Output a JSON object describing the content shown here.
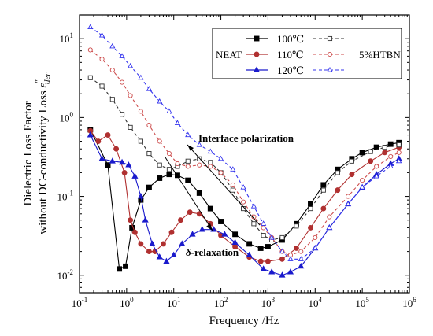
{
  "chart_data": {
    "type": "line",
    "xlabel": "Frequency /Hz",
    "ylabel_line1": "Dielectric Loss Factor",
    "ylabel_line2_prefix": "without DC-conductivity Loss ",
    "ylabel_symbol": "ε",
    "ylabel_superscript": "″",
    "ylabel_subscript": "der",
    "x_scale": "log",
    "y_scale": "log",
    "xlim": [
      0.1,
      1000000
    ],
    "ylim": [
      0.006,
      20
    ],
    "x_ticks": [
      {
        "value": 0.1,
        "base": "10",
        "exp": "-1"
      },
      {
        "value": 1,
        "base": "10",
        "exp": "0"
      },
      {
        "value": 10,
        "base": "10",
        "exp": "1"
      },
      {
        "value": 100,
        "base": "10",
        "exp": "2"
      },
      {
        "value": 1000,
        "base": "10",
        "exp": "3"
      },
      {
        "value": 10000,
        "base": "10",
        "exp": "4"
      },
      {
        "value": 100000,
        "base": "10",
        "exp": "5"
      },
      {
        "value": 1000000,
        "base": "10",
        "exp": "6"
      }
    ],
    "y_ticks": [
      {
        "value": 0.01,
        "base": "10",
        "exp": "-2"
      },
      {
        "value": 0.1,
        "base": "10",
        "exp": "-1"
      },
      {
        "value": 1,
        "base": "10",
        "exp": "0"
      },
      {
        "value": 10,
        "base": "10",
        "exp": "1"
      }
    ],
    "legend": {
      "placement": "top-right",
      "row_labels": [
        "100℃",
        "110℃",
        "120℃"
      ],
      "left_label": "NEAT",
      "right_label": "5%HTBN"
    },
    "annotations": {
      "interface": "Interface polarization",
      "delta_symbol": "δ",
      "delta_text": "-relaxation"
    },
    "series": [
      {
        "group": "NEAT",
        "temperature": "100℃",
        "color": "#000000",
        "marker": "square",
        "filled": true,
        "dashed": false,
        "points": [
          [
            0.17,
            0.7
          ],
          [
            0.4,
            0.25
          ],
          [
            0.7,
            0.012
          ],
          [
            0.95,
            0.013
          ],
          [
            1.3,
            0.04
          ],
          [
            2.0,
            0.09
          ],
          [
            3.0,
            0.13
          ],
          [
            5.0,
            0.17
          ],
          [
            8.0,
            0.19
          ],
          [
            12,
            0.185
          ],
          [
            20,
            0.16
          ],
          [
            35,
            0.11
          ],
          [
            60,
            0.07
          ],
          [
            100,
            0.048
          ],
          [
            200,
            0.033
          ],
          [
            400,
            0.025
          ],
          [
            700,
            0.022
          ],
          [
            1000,
            0.023
          ],
          [
            2000,
            0.028
          ],
          [
            4000,
            0.045
          ],
          [
            8000,
            0.08
          ],
          [
            15000,
            0.14
          ],
          [
            30000,
            0.22
          ],
          [
            60000,
            0.3
          ],
          [
            100000,
            0.36
          ],
          [
            200000,
            0.42
          ],
          [
            400000,
            0.46
          ],
          [
            600000,
            0.48
          ]
        ]
      },
      {
        "group": "NEAT",
        "temperature": "110℃",
        "color": "#b03030",
        "marker": "circle",
        "filled": true,
        "dashed": false,
        "points": [
          [
            0.17,
            0.68
          ],
          [
            0.25,
            0.5
          ],
          [
            0.4,
            0.6
          ],
          [
            0.6,
            0.4
          ],
          [
            0.9,
            0.2
          ],
          [
            1.2,
            0.05
          ],
          [
            1.5,
            0.035
          ],
          [
            2.0,
            0.025
          ],
          [
            3.0,
            0.02
          ],
          [
            4.0,
            0.02
          ],
          [
            6.0,
            0.025
          ],
          [
            9,
            0.035
          ],
          [
            14,
            0.05
          ],
          [
            22,
            0.063
          ],
          [
            35,
            0.06
          ],
          [
            60,
            0.045
          ],
          [
            100,
            0.032
          ],
          [
            200,
            0.023
          ],
          [
            400,
            0.017
          ],
          [
            700,
            0.015
          ],
          [
            1000,
            0.015
          ],
          [
            2000,
            0.016
          ],
          [
            4000,
            0.022
          ],
          [
            8000,
            0.04
          ],
          [
            15000,
            0.07
          ],
          [
            30000,
            0.12
          ],
          [
            60000,
            0.19
          ],
          [
            150000,
            0.28
          ],
          [
            300000,
            0.36
          ],
          [
            600000,
            0.42
          ]
        ]
      },
      {
        "group": "NEAT",
        "temperature": "120℃",
        "color": "#1a1acc",
        "marker": "triangle",
        "filled": true,
        "dashed": false,
        "points": [
          [
            0.17,
            0.6
          ],
          [
            0.3,
            0.3
          ],
          [
            0.5,
            0.28
          ],
          [
            0.8,
            0.27
          ],
          [
            1.1,
            0.25
          ],
          [
            1.5,
            0.18
          ],
          [
            2.0,
            0.1
          ],
          [
            2.5,
            0.05
          ],
          [
            3.5,
            0.025
          ],
          [
            5,
            0.017
          ],
          [
            7,
            0.015
          ],
          [
            10,
            0.018
          ],
          [
            15,
            0.025
          ],
          [
            25,
            0.033
          ],
          [
            40,
            0.038
          ],
          [
            70,
            0.038
          ],
          [
            120,
            0.033
          ],
          [
            200,
            0.026
          ],
          [
            400,
            0.018
          ],
          [
            800,
            0.012
          ],
          [
            1200,
            0.011
          ],
          [
            2000,
            0.01
          ],
          [
            3000,
            0.011
          ],
          [
            5000,
            0.013
          ],
          [
            10000,
            0.022
          ],
          [
            20000,
            0.04
          ],
          [
            50000,
            0.08
          ],
          [
            100000,
            0.13
          ],
          [
            200000,
            0.19
          ],
          [
            400000,
            0.26
          ],
          [
            600000,
            0.3
          ]
        ]
      },
      {
        "group": "5%HTBN",
        "temperature": "100℃",
        "color": "#333333",
        "marker": "square",
        "filled": false,
        "dashed": true,
        "points": [
          [
            0.17,
            3.2
          ],
          [
            0.3,
            2.5
          ],
          [
            0.5,
            1.7
          ],
          [
            0.8,
            1.1
          ],
          [
            1.2,
            0.75
          ],
          [
            2,
            0.5
          ],
          [
            3,
            0.35
          ],
          [
            5,
            0.25
          ],
          [
            8,
            0.22
          ],
          [
            12,
            0.24
          ],
          [
            20,
            0.28
          ],
          [
            35,
            0.3
          ],
          [
            60,
            0.27
          ],
          [
            100,
            0.2
          ],
          [
            180,
            0.12
          ],
          [
            300,
            0.07
          ],
          [
            500,
            0.045
          ],
          [
            800,
            0.032
          ],
          [
            1200,
            0.028
          ],
          [
            2000,
            0.03
          ],
          [
            4000,
            0.042
          ],
          [
            8000,
            0.07
          ],
          [
            15000,
            0.12
          ],
          [
            30000,
            0.2
          ],
          [
            60000,
            0.28
          ],
          [
            150000,
            0.37
          ],
          [
            300000,
            0.42
          ],
          [
            600000,
            0.45
          ]
        ]
      },
      {
        "group": "5%HTBN",
        "temperature": "110℃",
        "color": "#cc4a4a",
        "marker": "circle",
        "filled": false,
        "dashed": true,
        "points": [
          [
            0.17,
            7.2
          ],
          [
            0.3,
            5.5
          ],
          [
            0.5,
            4.0
          ],
          [
            0.8,
            2.8
          ],
          [
            1.2,
            1.9
          ],
          [
            2,
            1.2
          ],
          [
            3,
            0.8
          ],
          [
            5,
            0.5
          ],
          [
            8,
            0.35
          ],
          [
            12,
            0.26
          ],
          [
            20,
            0.24
          ],
          [
            35,
            0.25
          ],
          [
            60,
            0.24
          ],
          [
            100,
            0.2
          ],
          [
            180,
            0.14
          ],
          [
            300,
            0.085
          ],
          [
            500,
            0.055
          ],
          [
            800,
            0.04
          ],
          [
            1200,
            0.03
          ],
          [
            2000,
            0.02
          ],
          [
            3000,
            0.018
          ],
          [
            5000,
            0.02
          ],
          [
            10000,
            0.03
          ],
          [
            20000,
            0.055
          ],
          [
            50000,
            0.1
          ],
          [
            100000,
            0.16
          ],
          [
            200000,
            0.24
          ],
          [
            400000,
            0.32
          ],
          [
            600000,
            0.36
          ]
        ]
      },
      {
        "group": "5%HTBN",
        "temperature": "120℃",
        "color": "#3333ee",
        "marker": "triangle",
        "filled": false,
        "dashed": true,
        "points": [
          [
            0.17,
            14
          ],
          [
            0.3,
            11
          ],
          [
            0.5,
            8
          ],
          [
            0.8,
            6
          ],
          [
            1.2,
            4.5
          ],
          [
            2,
            3.2
          ],
          [
            3,
            2.3
          ],
          [
            5,
            1.6
          ],
          [
            8,
            1.2
          ],
          [
            12,
            0.85
          ],
          [
            20,
            0.6
          ],
          [
            35,
            0.45
          ],
          [
            60,
            0.37
          ],
          [
            100,
            0.3
          ],
          [
            180,
            0.22
          ],
          [
            300,
            0.13
          ],
          [
            500,
            0.075
          ],
          [
            800,
            0.045
          ],
          [
            1200,
            0.03
          ],
          [
            2000,
            0.02
          ],
          [
            3000,
            0.016
          ],
          [
            5000,
            0.016
          ],
          [
            10000,
            0.022
          ],
          [
            20000,
            0.04
          ],
          [
            50000,
            0.08
          ],
          [
            100000,
            0.13
          ],
          [
            200000,
            0.18
          ],
          [
            400000,
            0.24
          ],
          [
            600000,
            0.28
          ]
        ]
      }
    ]
  }
}
